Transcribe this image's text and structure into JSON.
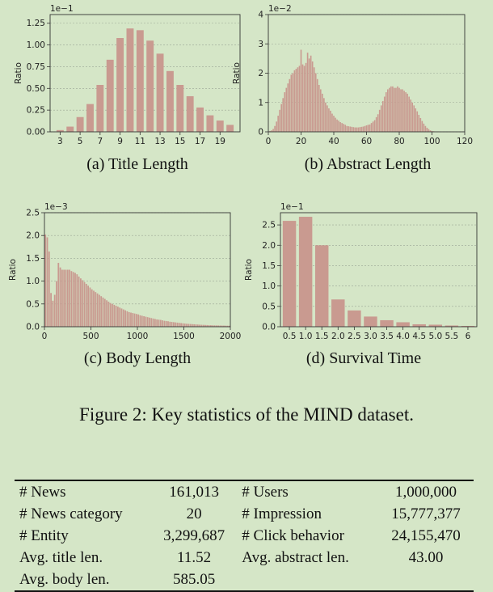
{
  "figure_caption": "Figure 2: Key statistics of the MIND dataset.",
  "subplots": [
    {
      "caption": "(a)  Title Length"
    },
    {
      "caption": "(b)  Abstract Length"
    },
    {
      "caption": "(c)  Body Length"
    },
    {
      "caption": "(d)  Survival Time"
    }
  ],
  "chart_data": [
    {
      "type": "bar",
      "ylabel": "Ratio",
      "scale_label": "1e−1",
      "x": [
        3,
        4,
        5,
        6,
        7,
        8,
        9,
        10,
        11,
        12,
        13,
        14,
        15,
        16,
        17,
        18,
        19,
        20
      ],
      "values": [
        0.02,
        0.06,
        0.17,
        0.32,
        0.54,
        0.83,
        1.08,
        1.19,
        1.17,
        1.05,
        0.9,
        0.7,
        0.54,
        0.41,
        0.28,
        0.19,
        0.13,
        0.08
      ],
      "ylim": [
        0,
        1.35
      ],
      "yticks": [
        "0.00",
        "0.25",
        "0.50",
        "0.75",
        "1.00",
        "1.25"
      ],
      "xticks": [
        "3",
        "5",
        "7",
        "9",
        "11",
        "13",
        "15",
        "17",
        "19"
      ],
      "grid": true,
      "color": "#c99a90"
    },
    {
      "type": "bar",
      "ylabel": "Ratio",
      "scale_label": "1e−2",
      "x_range": [
        0,
        120
      ],
      "xticks": [
        "0",
        "20",
        "40",
        "60",
        "80",
        "100",
        "120"
      ],
      "yticks": [
        "0",
        "1",
        "2",
        "3",
        "4"
      ],
      "ylim": [
        0,
        4
      ],
      "x": [
        1,
        2,
        3,
        4,
        5,
        6,
        7,
        8,
        9,
        10,
        11,
        12,
        13,
        14,
        15,
        16,
        17,
        18,
        19,
        20,
        21,
        22,
        23,
        24,
        25,
        26,
        27,
        28,
        29,
        30,
        31,
        32,
        33,
        34,
        35,
        36,
        37,
        38,
        39,
        40,
        41,
        42,
        43,
        44,
        45,
        46,
        47,
        48,
        49,
        50,
        51,
        52,
        53,
        54,
        55,
        56,
        57,
        58,
        59,
        60,
        61,
        62,
        63,
        64,
        65,
        66,
        67,
        68,
        69,
        70,
        71,
        72,
        73,
        74,
        75,
        76,
        77,
        78,
        79,
        80,
        81,
        82,
        83,
        84,
        85,
        86,
        87,
        88,
        89,
        90,
        91,
        92,
        93,
        94,
        95,
        96,
        97,
        98,
        99,
        100,
        101,
        102,
        103,
        104,
        105,
        106,
        107,
        108,
        109,
        110
      ],
      "values": [
        0.03,
        0.05,
        0.1,
        0.2,
        0.35,
        0.55,
        0.75,
        0.95,
        1.15,
        1.35,
        1.5,
        1.65,
        1.8,
        1.95,
        2.0,
        2.1,
        2.15,
        2.2,
        2.25,
        2.8,
        2.3,
        2.25,
        2.35,
        2.7,
        2.5,
        2.6,
        2.4,
        2.2,
        2.0,
        1.8,
        1.6,
        1.45,
        1.3,
        1.15,
        1.0,
        0.9,
        0.8,
        0.72,
        0.62,
        0.55,
        0.48,
        0.42,
        0.38,
        0.33,
        0.3,
        0.27,
        0.24,
        0.2,
        0.19,
        0.18,
        0.17,
        0.16,
        0.15,
        0.15,
        0.15,
        0.16,
        0.17,
        0.18,
        0.2,
        0.22,
        0.24,
        0.25,
        0.3,
        0.35,
        0.4,
        0.5,
        0.6,
        0.75,
        0.9,
        1.05,
        1.2,
        1.35,
        1.45,
        1.5,
        1.55,
        1.55,
        1.5,
        1.5,
        1.55,
        1.5,
        1.45,
        1.45,
        1.4,
        1.35,
        1.3,
        1.2,
        1.1,
        1.0,
        0.9,
        0.8,
        0.7,
        0.58,
        0.47,
        0.37,
        0.28,
        0.2,
        0.14,
        0.09,
        0.05,
        0.03,
        0.02,
        0.01,
        0.01,
        0.01,
        0.0,
        0.0,
        0.0,
        0.0,
        0.0,
        0.0
      ],
      "grid": true,
      "color": "#c99a90"
    },
    {
      "type": "bar",
      "ylabel": "Ratio",
      "scale_label": "1e−3",
      "x_range": [
        0,
        2000
      ],
      "xticks": [
        "0",
        "500",
        "1000",
        "1500",
        "2000"
      ],
      "yticks": [
        "0.0",
        "0.5",
        "1.0",
        "1.5",
        "2.0",
        "2.5"
      ],
      "ylim": [
        0,
        2.5
      ],
      "bin_width": 20,
      "values": [
        2.02,
        1.96,
        1.65,
        0.74,
        0.57,
        0.7,
        1.0,
        1.4,
        1.3,
        1.25,
        1.25,
        1.25,
        1.25,
        1.25,
        1.22,
        1.2,
        1.18,
        1.15,
        1.1,
        1.06,
        1.02,
        0.98,
        0.94,
        0.9,
        0.86,
        0.82,
        0.79,
        0.76,
        0.73,
        0.7,
        0.67,
        0.64,
        0.61,
        0.58,
        0.55,
        0.52,
        0.5,
        0.48,
        0.46,
        0.44,
        0.42,
        0.4,
        0.38,
        0.36,
        0.34,
        0.32,
        0.31,
        0.3,
        0.29,
        0.28,
        0.27,
        0.25,
        0.24,
        0.23,
        0.22,
        0.21,
        0.2,
        0.19,
        0.18,
        0.17,
        0.16,
        0.155,
        0.15,
        0.14,
        0.13,
        0.125,
        0.12,
        0.11,
        0.105,
        0.1,
        0.095,
        0.09,
        0.085,
        0.08,
        0.075,
        0.07,
        0.065,
        0.062,
        0.06,
        0.057,
        0.054,
        0.051,
        0.048,
        0.045,
        0.043,
        0.041,
        0.039,
        0.037,
        0.035,
        0.033,
        0.031,
        0.03,
        0.029,
        0.028,
        0.027,
        0.026,
        0.025,
        0.024,
        0.023,
        0.022
      ],
      "grid": true,
      "color": "#c99a90"
    },
    {
      "type": "bar",
      "ylabel": "Ratio",
      "scale_label": "1e−1",
      "categories": [
        "0.5",
        "1.0",
        "1.5",
        "2.0",
        "2.5",
        "3.0",
        "3.5",
        "4.0",
        "4.5",
        "5.0",
        "5.5",
        "6"
      ],
      "values": [
        2.6,
        2.7,
        2.0,
        0.67,
        0.4,
        0.25,
        0.16,
        0.11,
        0.06,
        0.05,
        0.03,
        0.02
      ],
      "ylim": [
        0,
        2.8
      ],
      "yticks": [
        "0.0",
        "0.5",
        "1.0",
        "1.5",
        "2.0",
        "2.5"
      ],
      "grid": true,
      "color": "#c99a90"
    }
  ],
  "table": {
    "rows": [
      [
        "# News",
        "161,013",
        "# Users",
        "1,000,000"
      ],
      [
        "# News category",
        "20",
        "# Impression",
        "15,777,377"
      ],
      [
        "# Entity",
        "3,299,687",
        "# Click behavior",
        "24,155,470"
      ],
      [
        "Avg. title len.",
        "11.52",
        "Avg. abstract len.",
        "43.00"
      ],
      [
        "Avg. body len.",
        "585.05",
        "",
        ""
      ]
    ]
  }
}
